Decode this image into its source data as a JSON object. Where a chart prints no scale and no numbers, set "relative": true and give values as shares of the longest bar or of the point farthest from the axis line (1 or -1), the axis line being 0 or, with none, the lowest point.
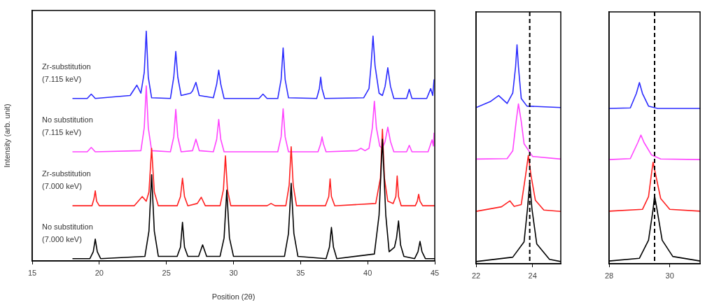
{
  "chart_data": [
    {
      "type": "line",
      "xlabel": "Position (2θ)",
      "ylabel": "Intensity (arb. unit)",
      "relative": true,
      "xlim": [
        15,
        45
      ],
      "xticks": [
        15,
        20,
        25,
        30,
        35,
        40,
        45
      ],
      "series": [
        {
          "name": "No substitution (7.000 keV)",
          "color": "#000000",
          "x": [
            18,
            19.3,
            19.55,
            19.7,
            19.85,
            20.1,
            23.4,
            23.7,
            23.9,
            24.1,
            24.4,
            25.8,
            26.05,
            26.2,
            26.35,
            26.6,
            27.4,
            27.7,
            28.0,
            29.0,
            29.3,
            29.5,
            29.7,
            30.0,
            33.8,
            34.1,
            34.3,
            34.5,
            34.8,
            36.9,
            37.15,
            37.3,
            37.45,
            37.7,
            40.5,
            40.85,
            41.1,
            41.35,
            41.6,
            42.0,
            42.15,
            42.3,
            42.45,
            42.7,
            43.5,
            43.75,
            43.9,
            44.05,
            44.3,
            45
          ],
          "values": [
            0.01,
            0.01,
            0.04,
            0.095,
            0.04,
            0.01,
            0.02,
            0.13,
            0.375,
            0.13,
            0.02,
            0.02,
            0.06,
            0.168,
            0.06,
            0.02,
            0.02,
            0.07,
            0.02,
            0.02,
            0.1,
            0.308,
            0.1,
            0.02,
            0.02,
            0.12,
            0.338,
            0.12,
            0.02,
            0.01,
            0.06,
            0.146,
            0.06,
            0.01,
            0.03,
            0.2,
            0.53,
            0.2,
            0.04,
            0.06,
            0.1,
            0.174,
            0.07,
            0.02,
            0.01,
            0.04,
            0.085,
            0.04,
            0.01,
            0.01
          ]
        },
        {
          "name": "Zr-substitution (7.000 keV)",
          "color": "#ff2020",
          "x": [
            18,
            19.45,
            19.6,
            19.7,
            19.8,
            20.0,
            22.6,
            23.2,
            23.5,
            23.7,
            23.9,
            24.1,
            24.4,
            25.8,
            26.05,
            26.2,
            26.35,
            26.6,
            27.3,
            27.6,
            27.9,
            29.0,
            29.25,
            29.4,
            29.55,
            29.8,
            32.5,
            32.8,
            33.1,
            33.9,
            34.15,
            34.3,
            34.45,
            34.7,
            36.85,
            37.1,
            37.2,
            37.3,
            37.55,
            40.6,
            40.95,
            41.1,
            41.25,
            41.5,
            41.9,
            42.1,
            42.2,
            42.3,
            42.5,
            43.55,
            43.7,
            43.8,
            43.9,
            44.1,
            45
          ],
          "values": [
            0.24,
            0.24,
            0.27,
            0.305,
            0.26,
            0.24,
            0.24,
            0.28,
            0.26,
            0.3,
            0.49,
            0.3,
            0.24,
            0.24,
            0.28,
            0.36,
            0.28,
            0.24,
            0.25,
            0.277,
            0.24,
            0.24,
            0.31,
            0.457,
            0.31,
            0.24,
            0.24,
            0.25,
            0.24,
            0.24,
            0.33,
            0.497,
            0.33,
            0.24,
            0.24,
            0.28,
            0.357,
            0.28,
            0.24,
            0.25,
            0.36,
            0.573,
            0.36,
            0.26,
            0.25,
            0.28,
            0.37,
            0.28,
            0.24,
            0.24,
            0.26,
            0.29,
            0.26,
            0.24,
            0.24
          ]
        },
        {
          "name": "No substitution (7.115 keV)",
          "color": "#ff44ff",
          "x": [
            18,
            19.1,
            19.4,
            19.7,
            23.1,
            23.35,
            23.5,
            23.65,
            23.9,
            25.3,
            25.55,
            25.7,
            25.85,
            26.1,
            26.95,
            27.2,
            27.45,
            28.5,
            28.75,
            28.9,
            29.05,
            29.3,
            33.3,
            33.55,
            33.7,
            33.85,
            34.1,
            36.3,
            36.5,
            36.6,
            36.7,
            36.9,
            39.2,
            39.5,
            39.8,
            40.1,
            40.35,
            40.5,
            40.65,
            40.9,
            41.1,
            41.3,
            41.5,
            41.7,
            41.95,
            42.9,
            43.1,
            43.3,
            44.5,
            44.8,
            44.9,
            44.95
          ],
          "values": [
            0.475,
            0.475,
            0.494,
            0.475,
            0.48,
            0.58,
            0.762,
            0.58,
            0.48,
            0.475,
            0.54,
            0.66,
            0.54,
            0.475,
            0.48,
            0.53,
            0.48,
            0.475,
            0.53,
            0.616,
            0.53,
            0.475,
            0.475,
            0.54,
            0.662,
            0.54,
            0.475,
            0.475,
            0.51,
            0.54,
            0.51,
            0.475,
            0.48,
            0.49,
            0.48,
            0.49,
            0.58,
            0.695,
            0.58,
            0.5,
            0.49,
            0.52,
            0.582,
            0.52,
            0.475,
            0.475,
            0.503,
            0.475,
            0.475,
            0.527,
            0.5,
            0.558
          ]
        },
        {
          "name": "Zr-substitution (7.115 keV)",
          "color": "#2b2bff",
          "x": [
            18,
            19.1,
            19.4,
            19.7,
            22.3,
            22.8,
            23.1,
            23.35,
            23.5,
            23.65,
            23.9,
            25.3,
            25.55,
            25.7,
            25.85,
            26.1,
            26.8,
            26.95,
            27.2,
            27.45,
            28.5,
            28.75,
            28.9,
            29.05,
            29.3,
            31.9,
            32.2,
            32.5,
            33.3,
            33.55,
            33.7,
            33.85,
            34.1,
            36.2,
            36.4,
            36.5,
            36.6,
            36.8,
            39.7,
            40.1,
            40.25,
            40.4,
            40.55,
            40.85,
            41.1,
            41.3,
            41.5,
            41.7,
            41.95,
            42.9,
            43.1,
            43.3,
            44.4,
            44.7,
            44.85,
            44.95
          ],
          "values": [
            0.707,
            0.707,
            0.726,
            0.707,
            0.72,
            0.765,
            0.73,
            0.82,
            1,
            0.8,
            0.71,
            0.707,
            0.8,
            0.912,
            0.8,
            0.72,
            0.73,
            0.74,
            0.777,
            0.72,
            0.71,
            0.77,
            0.83,
            0.77,
            0.707,
            0.707,
            0.726,
            0.707,
            0.707,
            0.79,
            0.927,
            0.79,
            0.71,
            0.707,
            0.75,
            0.8,
            0.75,
            0.707,
            0.71,
            0.75,
            0.85,
            0.979,
            0.85,
            0.73,
            0.72,
            0.76,
            0.841,
            0.76,
            0.707,
            0.707,
            0.747,
            0.707,
            0.707,
            0.75,
            0.72,
            0.79
          ]
        }
      ]
    },
    {
      "type": "line",
      "relative": true,
      "xlim": [
        22,
        25
      ],
      "xticks": [
        22,
        24
      ],
      "ref_lines": [
        {
          "axis": "x",
          "value": 23.9,
          "color": "#000000",
          "line_style": "dashed"
        }
      ],
      "series": [
        {
          "color": "#000000",
          "x": [
            22,
            23.3,
            23.7,
            23.82,
            23.9,
            23.98,
            24.15,
            24.6,
            25
          ],
          "values": [
            0.01,
            0.03,
            0.1,
            0.25,
            0.37,
            0.25,
            0.09,
            0.02,
            0.01
          ]
        },
        {
          "color": "#ff2020",
          "x": [
            22,
            22.9,
            23.2,
            23.35,
            23.6,
            23.75,
            23.85,
            23.95,
            24.1,
            24.4,
            25
          ],
          "values": [
            0.239,
            0.26,
            0.287,
            0.262,
            0.27,
            0.4,
            0.494,
            0.4,
            0.29,
            0.245,
            0.239
          ]
        },
        {
          "color": "#ff44ff",
          "x": [
            22,
            23.1,
            23.3,
            23.42,
            23.5,
            23.6,
            23.7,
            24.0,
            25
          ],
          "values": [
            0.478,
            0.48,
            0.516,
            0.65,
            0.73,
            0.65,
            0.548,
            0.49,
            0.478
          ]
        },
        {
          "color": "#2b2bff",
          "x": [
            22,
            22.5,
            22.8,
            23.1,
            23.3,
            23.4,
            23.45,
            23.5,
            23.6,
            23.8,
            25
          ],
          "values": [
            0.713,
            0.74,
            0.768,
            0.732,
            0.78,
            0.9,
            1,
            0.9,
            0.755,
            0.72,
            0.713
          ]
        }
      ]
    },
    {
      "type": "line",
      "relative": true,
      "xlim": [
        28,
        31
      ],
      "xticks": [
        28,
        30
      ],
      "ref_lines": [
        {
          "axis": "x",
          "value": 29.5,
          "color": "#000000",
          "line_style": "dashed"
        }
      ],
      "series": [
        {
          "color": "#000000",
          "x": [
            28,
            29.0,
            29.3,
            29.45,
            29.5,
            29.58,
            29.75,
            30.1,
            31
          ],
          "values": [
            0.015,
            0.03,
            0.13,
            0.3,
            0.375,
            0.3,
            0.13,
            0.04,
            0.015
          ]
        },
        {
          "color": "#ff2020",
          "x": [
            28,
            29.1,
            29.3,
            29.4,
            29.45,
            29.55,
            29.7,
            30.0,
            31
          ],
          "values": [
            0.29,
            0.3,
            0.37,
            0.5,
            0.56,
            0.48,
            0.36,
            0.3,
            0.29
          ]
        },
        {
          "color": "#ff44ff",
          "x": [
            28,
            28.7,
            28.95,
            29.05,
            29.15,
            29.4,
            29.7,
            31
          ],
          "values": [
            0.575,
            0.58,
            0.67,
            0.71,
            0.67,
            0.6,
            0.578,
            0.575
          ]
        },
        {
          "color": "#2b2bff",
          "x": [
            28,
            28.7,
            28.9,
            29.0,
            29.1,
            29.3,
            29.6,
            31
          ],
          "values": [
            0.857,
            0.86,
            0.94,
            1,
            0.94,
            0.87,
            0.857,
            0.857
          ]
        }
      ]
    }
  ]
}
